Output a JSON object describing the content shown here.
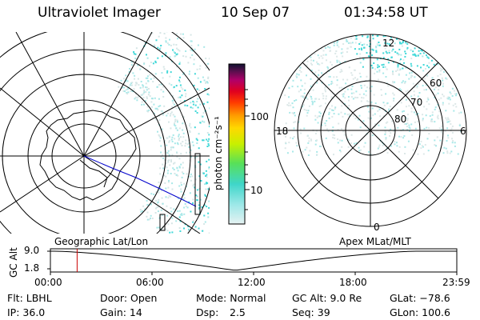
{
  "header": {
    "instrument": "Ultraviolet Imager",
    "date": "10 Sep 07",
    "time": "01:34:58 UT"
  },
  "colorbar": {
    "units": "photon cm⁻²s⁻¹",
    "ticks": [
      "100",
      "10"
    ]
  },
  "right_map": {
    "mlt_labels": {
      "top": "12",
      "left": "18",
      "right": "6",
      "bottom": "0"
    },
    "lat_labels": [
      "60",
      "70",
      "80"
    ]
  },
  "timeline": {
    "left_title": "Geographic Lat/Lon",
    "right_title": "Apex MLat/MLT",
    "y_label": "GC Alt",
    "y_ticks": [
      "9.0",
      "1.8"
    ],
    "x_ticks": [
      "00:00",
      "06:00",
      "12:00",
      "18:00",
      "23:59"
    ],
    "marker_time_hours": 1.58
  },
  "footer": {
    "filter": "Flt: LBHL",
    "door": "Door: Open",
    "mode": "Mode: Normal",
    "gc_alt": "GC Alt: 9.0 Re",
    "glat": "GLat: −78.6",
    "ip": "IP: 36.0",
    "gain": "Gain: 14",
    "dsp_label": "Dsp:",
    "dsp_value": "2.5",
    "seq": "Seq: 39",
    "glon": "GLon: 100.6"
  },
  "colors": {
    "aurora": "#40d8d8",
    "aurora_light": "#a8e8e8",
    "marker": "#cc0000",
    "track": "#0000cc"
  }
}
